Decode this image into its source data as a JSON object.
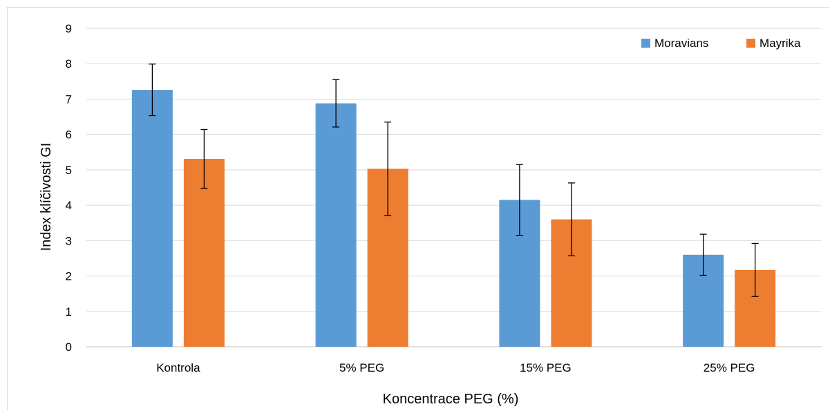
{
  "chart_data": {
    "type": "bar",
    "title": "",
    "xlabel": "Koncentrace PEG (%)",
    "ylabel": "Index klíčivosti GI",
    "categories": [
      "Kontrola",
      "5% PEG",
      "15% PEG",
      "25% PEG"
    ],
    "ylim": [
      0,
      9
    ],
    "yticks": [
      0,
      1,
      2,
      3,
      4,
      5,
      6,
      7,
      8,
      9
    ],
    "grid": true,
    "legend_position": "top-right",
    "series": [
      {
        "name": "Moravians",
        "color": "#5b9bd5",
        "values": [
          7.26,
          6.88,
          4.15,
          2.6
        ],
        "error": [
          0.73,
          0.67,
          1.0,
          0.58
        ]
      },
      {
        "name": "Mayrika",
        "color": "#ed7d31",
        "values": [
          5.31,
          5.03,
          3.6,
          2.17
        ],
        "error": [
          0.83,
          1.32,
          1.03,
          0.75
        ]
      }
    ]
  }
}
